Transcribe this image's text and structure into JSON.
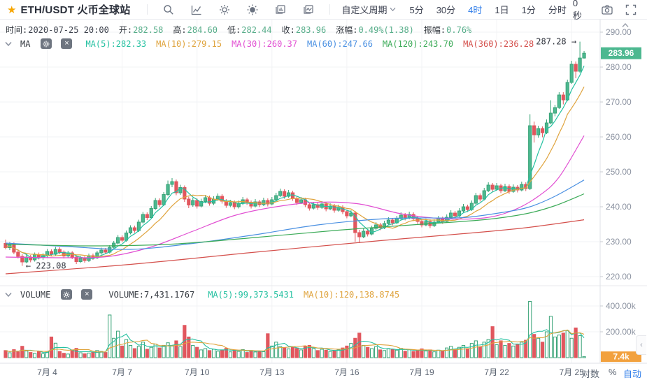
{
  "toolbar": {
    "symbol": "ETH/USDT",
    "exchange": "火币全球站",
    "period_dropdown": "自定义周期",
    "periods": [
      "5分",
      "30分",
      "4时",
      "1日",
      "1分",
      "分时"
    ],
    "active_period": "4时",
    "countdown": "0秒"
  },
  "info_bar": {
    "items": [
      {
        "label": "时间:",
        "value": "2020-07-25 20:00",
        "color": "#3a3f4a"
      },
      {
        "label": "开:",
        "value": "282.58"
      },
      {
        "label": "高:",
        "value": "284.60"
      },
      {
        "label": "低:",
        "value": "282.44"
      },
      {
        "label": "收:",
        "value": "283.96"
      },
      {
        "label": "涨幅:",
        "value": "0.49%(1.38)"
      },
      {
        "label": "振幅:",
        "value": "0.76%"
      }
    ],
    "value_color": "#56ad89"
  },
  "ma_bar": {
    "title": "MA",
    "items": [
      {
        "label": "MA(5):",
        "value": "282.33",
        "color": "#25c1a1"
      },
      {
        "label": "MA(10):",
        "value": "279.15",
        "color": "#dfa33c"
      },
      {
        "label": "MA(30):",
        "value": "260.37",
        "color": "#e14ed2"
      },
      {
        "label": "MA(60):",
        "value": "247.66",
        "color": "#4a90e2"
      },
      {
        "label": "MA(120):",
        "value": "243.70",
        "color": "#3cab58"
      },
      {
        "label": "MA(360):",
        "value": "236.28",
        "color": "#d4504c"
      }
    ]
  },
  "volume_bar": {
    "title": "VOLUME",
    "current_label": "VOLUME:",
    "current_value": "7,431.1767",
    "items": [
      {
        "label": "MA(5):",
        "value": "99,373.5431",
        "color": "#25c1a1"
      },
      {
        "label": "MA(10):",
        "value": "120,138.8745",
        "color": "#dfa33c"
      }
    ]
  },
  "controls": {
    "log": "对数",
    "percent": "%",
    "auto": "自动"
  },
  "chart_data": {
    "type": "candlestick+volume",
    "pair": "ETH/USDT",
    "timeframe": "4时",
    "price_ticks": [
      {
        "v": 290,
        "t": "290.00"
      },
      {
        "v": 280,
        "t": "280.00"
      },
      {
        "v": 270,
        "t": "270.00"
      },
      {
        "v": 260,
        "t": "260.00"
      },
      {
        "v": 250,
        "t": "250.00"
      },
      {
        "v": 240,
        "t": "240.00"
      },
      {
        "v": 230,
        "t": "230.00"
      },
      {
        "v": 220,
        "t": "220.00"
      }
    ],
    "volume_ticks": [
      {
        "v": 400,
        "t": "400.00k"
      },
      {
        "v": 200,
        "t": "200.00k"
      }
    ],
    "dates": [
      {
        "i": 10,
        "t": "7月 4"
      },
      {
        "i": 28,
        "t": "7月 7"
      },
      {
        "i": 46,
        "t": "7月 10"
      },
      {
        "i": 64,
        "t": "7月 13"
      },
      {
        "i": 82,
        "t": "7月 16"
      },
      {
        "i": 100,
        "t": "7月 19"
      },
      {
        "i": 118,
        "t": "7月 22"
      },
      {
        "i": 136,
        "t": "7月 25"
      }
    ],
    "last_price": {
      "v": 283.96,
      "t": "283.96"
    },
    "last_volume": {
      "v": 7.4,
      "t": "7.4k"
    },
    "markers": {
      "high": {
        "idx": 138,
        "price": 287.28,
        "label": "287.28 →"
      },
      "low": {
        "idx": 4,
        "price": 223.08,
        "label": "← 223.08"
      }
    },
    "colors": {
      "up_fill": "#4db890",
      "up_stroke": "#38a377",
      "down": "#e1575e",
      "ma5": "#25c1a1",
      "ma10": "#dfa33c",
      "ma30": "#e14ed2",
      "ma60": "#4a90e2",
      "ma120": "#3cab58",
      "ma360": "#d4504c",
      "grid": "#f2f3f5",
      "axis_line": "#dfe2e7",
      "tick_text": "#8c93a1",
      "date_text": "#5b6472",
      "badge_price": "#4db890",
      "badge_volume": "#f2a13e"
    },
    "candles": [
      [
        229.5,
        230.6,
        227.8,
        228.3
      ],
      [
        228.3,
        229.9,
        227.6,
        229.2
      ],
      [
        229.2,
        229.8,
        226.4,
        227.0
      ],
      [
        227.0,
        227.8,
        225.2,
        225.8
      ],
      [
        225.8,
        226.4,
        223.08,
        224.2
      ],
      [
        224.2,
        226.3,
        223.8,
        225.6
      ],
      [
        225.6,
        226.2,
        224.1,
        224.8
      ],
      [
        224.8,
        226.9,
        224.3,
        226.3
      ],
      [
        226.3,
        226.9,
        224.9,
        225.5
      ],
      [
        225.5,
        226.7,
        224.8,
        226.0
      ],
      [
        226.0,
        227.9,
        225.5,
        227.2
      ],
      [
        227.2,
        227.8,
        225.9,
        226.4
      ],
      [
        226.4,
        228.5,
        226.0,
        227.8
      ],
      [
        227.8,
        228.4,
        226.4,
        227.0
      ],
      [
        227.0,
        227.5,
        225.2,
        225.9
      ],
      [
        225.9,
        227.4,
        225.4,
        226.8
      ],
      [
        226.8,
        227.3,
        225.0,
        225.6
      ],
      [
        225.6,
        226.1,
        223.6,
        224.3
      ],
      [
        224.3,
        225.9,
        223.9,
        225.2
      ],
      [
        225.2,
        225.8,
        224.0,
        224.6
      ],
      [
        224.6,
        226.6,
        224.2,
        226.0
      ],
      [
        226.0,
        226.6,
        224.8,
        225.4
      ],
      [
        225.4,
        227.4,
        225.0,
        226.8
      ],
      [
        226.8,
        228.3,
        226.3,
        227.6
      ],
      [
        227.6,
        228.2,
        226.4,
        227.0
      ],
      [
        227.0,
        229.0,
        226.6,
        228.4
      ],
      [
        228.4,
        230.2,
        228.0,
        229.6
      ],
      [
        229.6,
        231.9,
        229.2,
        231.2
      ],
      [
        231.2,
        231.8,
        229.8,
        230.4
      ],
      [
        230.4,
        233.2,
        230.0,
        232.5
      ],
      [
        232.5,
        234.7,
        232.1,
        234.0
      ],
      [
        234.0,
        234.6,
        232.6,
        233.2
      ],
      [
        233.2,
        236.3,
        232.8,
        235.6
      ],
      [
        235.6,
        238.5,
        235.2,
        237.8
      ],
      [
        237.8,
        238.4,
        236.2,
        236.9
      ],
      [
        236.9,
        240.2,
        236.5,
        239.5
      ],
      [
        239.5,
        242.5,
        239.1,
        241.8
      ],
      [
        241.8,
        242.4,
        239.9,
        240.6
      ],
      [
        240.6,
        244.2,
        240.2,
        243.5
      ],
      [
        243.5,
        247.5,
        243.1,
        246.4
      ],
      [
        246.4,
        248.2,
        245.6,
        247.2
      ],
      [
        247.2,
        247.8,
        243.3,
        244.0
      ],
      [
        244.0,
        246.3,
        243.4,
        245.5
      ],
      [
        245.5,
        246.1,
        241.4,
        242.2
      ],
      [
        242.2,
        242.9,
        239.6,
        240.5
      ],
      [
        240.5,
        242.6,
        240.0,
        241.8
      ],
      [
        241.8,
        242.4,
        239.5,
        240.2
      ],
      [
        240.2,
        242.3,
        239.8,
        241.5
      ],
      [
        241.5,
        243.4,
        241.0,
        242.6
      ],
      [
        242.6,
        243.2,
        240.3,
        241.0
      ],
      [
        241.0,
        243.0,
        240.5,
        242.2
      ],
      [
        242.2,
        243.8,
        241.7,
        243.0
      ],
      [
        243.0,
        243.6,
        240.9,
        241.6
      ],
      [
        241.6,
        242.2,
        239.7,
        240.4
      ],
      [
        240.4,
        242.0,
        239.9,
        241.2
      ],
      [
        241.2,
        241.8,
        239.3,
        240.0
      ],
      [
        240.0,
        241.8,
        239.5,
        241.0
      ],
      [
        241.0,
        242.8,
        240.5,
        242.0
      ],
      [
        242.0,
        242.6,
        240.5,
        241.2
      ],
      [
        241.2,
        241.8,
        239.5,
        240.2
      ],
      [
        240.2,
        242.2,
        239.8,
        241.4
      ],
      [
        241.4,
        242.0,
        239.9,
        240.6
      ],
      [
        240.6,
        242.6,
        240.2,
        241.8
      ],
      [
        241.8,
        242.4,
        240.1,
        240.8
      ],
      [
        240.8,
        242.8,
        240.4,
        242.0
      ],
      [
        242.0,
        244.0,
        241.6,
        243.2
      ],
      [
        243.2,
        245.2,
        242.8,
        244.4
      ],
      [
        244.4,
        245.0,
        242.3,
        243.0
      ],
      [
        243.0,
        244.8,
        242.6,
        244.0
      ],
      [
        244.0,
        244.6,
        241.7,
        242.4
      ],
      [
        242.4,
        243.0,
        240.5,
        241.2
      ],
      [
        241.2,
        242.8,
        240.8,
        242.0
      ],
      [
        242.0,
        242.6,
        239.9,
        240.6
      ],
      [
        240.6,
        241.2,
        238.9,
        239.6
      ],
      [
        239.6,
        241.4,
        239.2,
        240.6
      ],
      [
        240.6,
        241.2,
        239.1,
        239.8
      ],
      [
        239.8,
        241.6,
        239.4,
        240.8
      ],
      [
        240.8,
        241.4,
        238.7,
        239.4
      ],
      [
        239.4,
        241.0,
        239.0,
        240.2
      ],
      [
        240.2,
        240.8,
        238.3,
        239.0
      ],
      [
        239.0,
        240.6,
        238.6,
        239.8
      ],
      [
        239.8,
        240.4,
        237.9,
        238.6
      ],
      [
        238.6,
        239.2,
        236.7,
        237.4
      ],
      [
        237.4,
        239.0,
        237.0,
        238.2
      ],
      [
        238.2,
        238.8,
        230.0,
        232.6
      ],
      [
        232.6,
        233.4,
        229.6,
        231.4
      ],
      [
        231.4,
        233.8,
        231.0,
        233.0
      ],
      [
        233.0,
        233.6,
        231.5,
        232.2
      ],
      [
        232.2,
        234.6,
        231.8,
        233.8
      ],
      [
        233.8,
        235.6,
        233.4,
        234.8
      ],
      [
        234.8,
        235.4,
        233.3,
        234.0
      ],
      [
        234.0,
        236.0,
        233.6,
        235.2
      ],
      [
        235.2,
        237.0,
        234.8,
        236.2
      ],
      [
        236.2,
        236.8,
        234.7,
        235.4
      ],
      [
        235.4,
        237.4,
        235.0,
        236.6
      ],
      [
        236.6,
        238.4,
        236.2,
        237.6
      ],
      [
        237.6,
        238.2,
        236.1,
        236.8
      ],
      [
        236.8,
        238.6,
        236.4,
        237.8
      ],
      [
        237.8,
        238.4,
        235.9,
        236.6
      ],
      [
        236.6,
        237.2,
        235.1,
        235.8
      ],
      [
        235.8,
        236.4,
        234.1,
        234.8
      ],
      [
        234.8,
        236.6,
        234.4,
        235.8
      ],
      [
        235.8,
        236.4,
        233.9,
        234.6
      ],
      [
        234.6,
        236.4,
        234.2,
        235.6
      ],
      [
        235.6,
        237.4,
        235.2,
        236.6
      ],
      [
        236.6,
        237.2,
        235.1,
        235.8
      ],
      [
        235.8,
        237.8,
        235.4,
        237.0
      ],
      [
        237.0,
        239.0,
        236.6,
        238.2
      ],
      [
        238.2,
        238.8,
        236.7,
        237.4
      ],
      [
        237.4,
        239.6,
        237.0,
        238.8
      ],
      [
        238.8,
        240.8,
        238.4,
        240.0
      ],
      [
        240.0,
        240.6,
        238.5,
        239.2
      ],
      [
        239.2,
        241.8,
        238.8,
        241.0
      ],
      [
        241.0,
        244.0,
        240.6,
        243.2
      ],
      [
        243.2,
        243.8,
        241.5,
        242.2
      ],
      [
        242.2,
        245.4,
        241.8,
        244.6
      ],
      [
        244.6,
        247.0,
        244.2,
        246.2
      ],
      [
        246.2,
        246.8,
        244.3,
        245.0
      ],
      [
        245.0,
        246.8,
        244.6,
        246.0
      ],
      [
        246.0,
        246.6,
        243.9,
        244.6
      ],
      [
        244.6,
        246.6,
        244.2,
        245.8
      ],
      [
        245.8,
        246.4,
        243.7,
        244.4
      ],
      [
        244.4,
        246.4,
        244.0,
        245.6
      ],
      [
        245.6,
        246.2,
        244.1,
        244.8
      ],
      [
        244.8,
        247.2,
        244.4,
        246.4
      ],
      [
        246.4,
        247.0,
        244.5,
        245.2
      ],
      [
        245.2,
        266.5,
        244.8,
        263.2
      ],
      [
        263.2,
        264.4,
        258.4,
        260.6
      ],
      [
        260.6,
        263.2,
        259.8,
        262.4
      ],
      [
        262.4,
        263.0,
        259.9,
        261.2
      ],
      [
        261.2,
        265.0,
        260.8,
        264.0
      ],
      [
        264.0,
        270.5,
        263.6,
        266.8
      ],
      [
        266.8,
        269.2,
        265.9,
        268.4
      ],
      [
        268.4,
        272.8,
        268.0,
        272.0
      ],
      [
        272.0,
        272.8,
        269.3,
        270.6
      ],
      [
        270.6,
        276.4,
        270.2,
        275.6
      ],
      [
        275.6,
        281.8,
        275.2,
        280.8
      ],
      [
        280.8,
        281.6,
        276.8,
        278.8
      ],
      [
        278.8,
        287.28,
        278.4,
        282.58
      ],
      [
        282.58,
        284.6,
        282.44,
        283.96
      ]
    ],
    "volume_k": [
      55,
      38,
      62,
      45,
      88,
      52,
      40,
      33,
      46,
      30,
      42,
      160,
      112,
      48,
      34,
      28,
      60,
      72,
      38,
      30,
      36,
      42,
      55,
      48,
      40,
      330,
      150,
      205,
      90,
      140,
      95,
      70,
      88,
      120,
      65,
      80,
      105,
      75,
      95,
      115,
      90,
      130,
      85,
      250,
      160,
      95,
      80,
      60,
      70,
      55,
      65,
      50,
      60,
      72,
      45,
      58,
      48,
      62,
      40,
      55,
      44,
      50,
      46,
      185,
      90,
      120,
      85,
      75,
      68,
      80,
      72,
      60,
      88,
      95,
      70,
      55,
      65,
      58,
      48,
      52,
      60,
      75,
      90,
      110,
      150,
      190,
      95,
      80,
      70,
      85,
      60,
      55,
      70,
      65,
      58,
      72,
      50,
      62,
      48,
      55,
      68,
      52,
      60,
      45,
      58,
      50,
      75,
      88,
      65,
      80,
      95,
      70,
      110,
      130,
      85,
      120,
      140,
      240,
      100,
      130,
      95,
      110,
      90,
      105,
      120,
      135,
      435,
      180,
      150,
      120,
      200,
      320,
      160,
      175,
      190,
      210,
      150,
      230,
      170,
      7.4
    ],
    "moving_averages": {
      "ma30": [
        [
          0,
          225.6
        ],
        [
          15,
          225.4
        ],
        [
          25,
          225.8
        ],
        [
          35,
          228.5
        ],
        [
          45,
          233.0
        ],
        [
          55,
          237.5
        ],
        [
          65,
          240.0
        ],
        [
          75,
          241.3
        ],
        [
          85,
          240.8
        ],
        [
          95,
          238.0
        ],
        [
          105,
          236.6
        ],
        [
          115,
          236.8
        ],
        [
          122,
          239.0
        ],
        [
          128,
          243.0
        ],
        [
          133,
          248.5
        ],
        [
          139,
          260.37
        ]
      ],
      "ma60": [
        [
          0,
          229.6
        ],
        [
          15,
          228.6
        ],
        [
          30,
          227.8
        ],
        [
          45,
          229.5
        ],
        [
          60,
          232.0
        ],
        [
          75,
          234.8
        ],
        [
          90,
          236.5
        ],
        [
          100,
          236.8
        ],
        [
          110,
          236.9
        ],
        [
          120,
          238.5
        ],
        [
          126,
          240.0
        ],
        [
          132,
          243.0
        ],
        [
          139,
          247.66
        ]
      ],
      "ma120": [
        [
          0,
          229.3
        ],
        [
          20,
          228.8
        ],
        [
          40,
          229.3
        ],
        [
          60,
          231.2
        ],
        [
          80,
          233.3
        ],
        [
          100,
          235.0
        ],
        [
          115,
          236.3
        ],
        [
          125,
          238.0
        ],
        [
          132,
          240.3
        ],
        [
          139,
          243.7
        ]
      ],
      "ma360": [
        [
          0,
          220.8
        ],
        [
          30,
          223.5
        ],
        [
          60,
          227.0
        ],
        [
          90,
          230.3
        ],
        [
          110,
          232.3
        ],
        [
          125,
          234.0
        ],
        [
          139,
          236.28
        ]
      ]
    }
  }
}
